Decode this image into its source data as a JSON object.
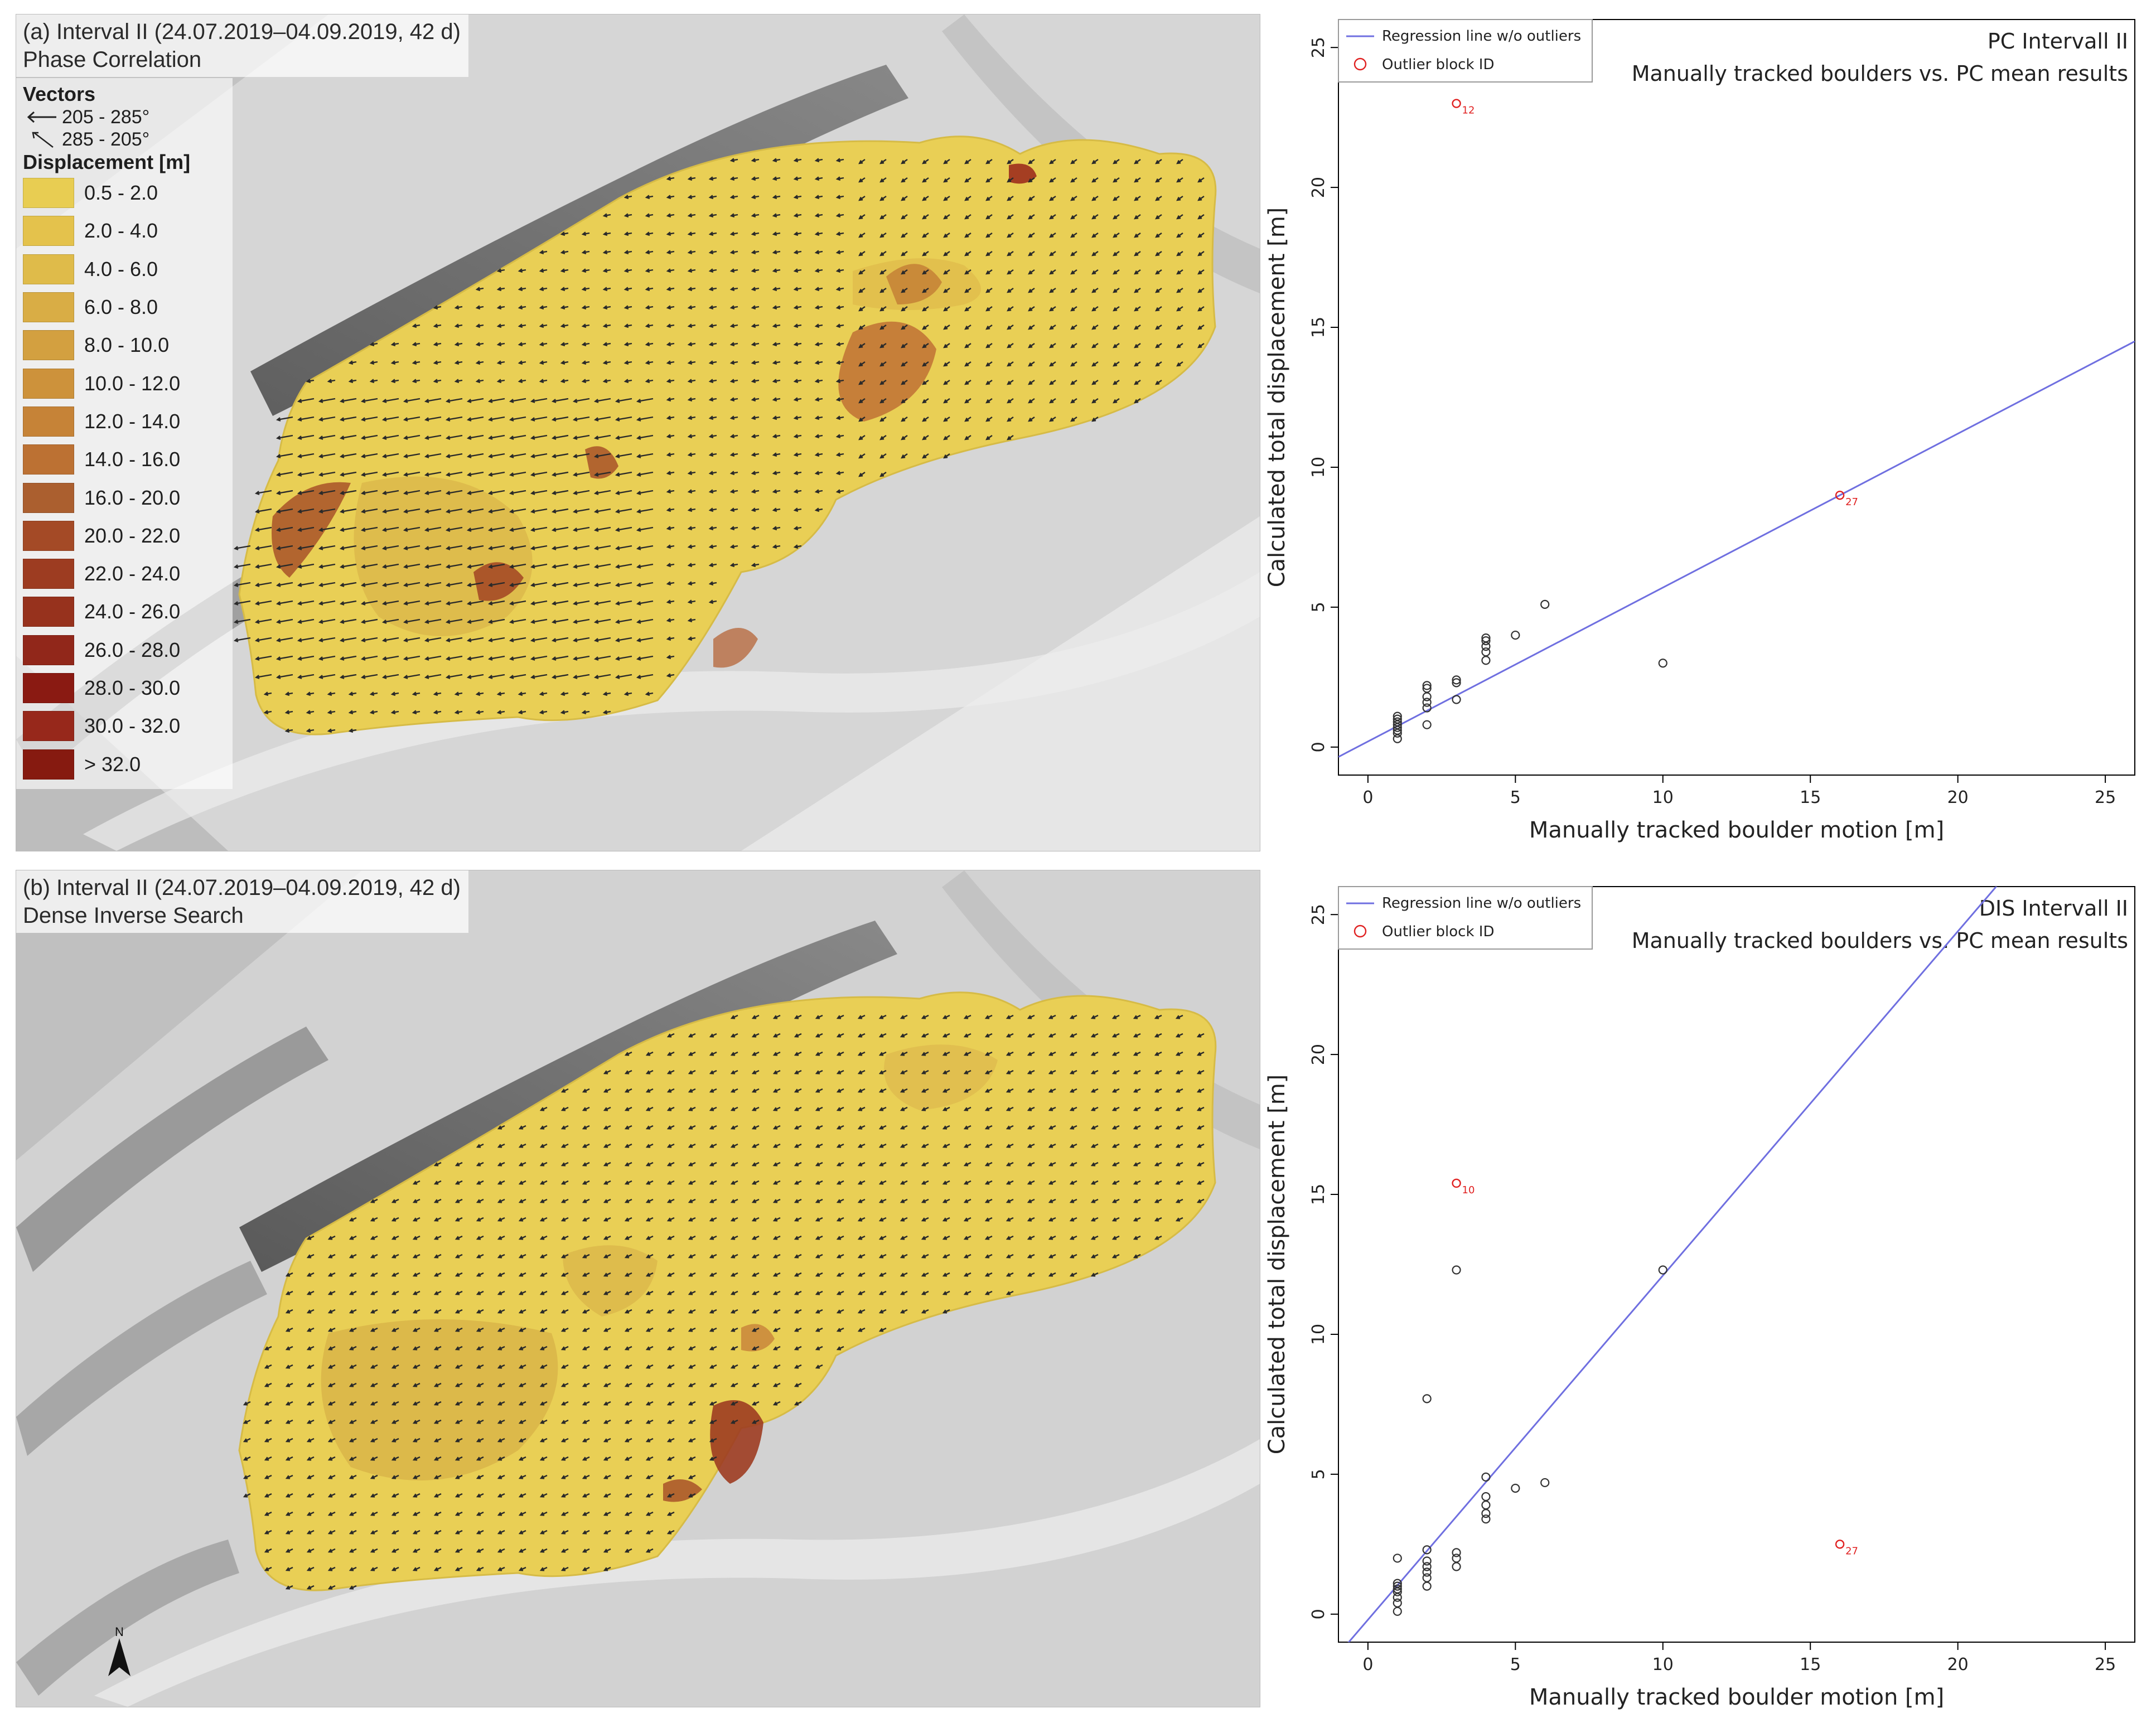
{
  "maps": [
    {
      "title": "(a) Interval II (24.07.2019–04.09.2019, 42 d)",
      "subtitle": "Phase Correlation",
      "legend": {
        "vectors_title": "Vectors",
        "vector_classes": [
          "205 - 285°",
          "285 - 205°"
        ],
        "displacement_title": "Displacement [m]",
        "classes": [
          {
            "label": "0.5 - 2.0",
            "color": "#e8cd52"
          },
          {
            "label": "2.0 - 4.0",
            "color": "#e4c24c"
          },
          {
            "label": "4.0 - 6.0",
            "color": "#dfbb4a"
          },
          {
            "label": "6.0 - 8.0",
            "color": "#d9ad45"
          },
          {
            "label": "8.0 - 10.0",
            "color": "#d3a040"
          },
          {
            "label": "10.0 - 12.0",
            "color": "#cd923b"
          },
          {
            "label": "12.0 - 14.0",
            "color": "#c68337"
          },
          {
            "label": "14.0 - 16.0",
            "color": "#bc7133"
          },
          {
            "label": "16.0 - 20.0",
            "color": "#ab5f2f"
          },
          {
            "label": "20.0 - 22.0",
            "color": "#a44a26"
          },
          {
            "label": "22.0 - 24.0",
            "color": "#9d3c21"
          },
          {
            "label": "24.0 - 26.0",
            "color": "#97321d"
          },
          {
            "label": "26.0 - 28.0",
            "color": "#91271a"
          },
          {
            "label": "28.0 - 30.0",
            "color": "#8a1a12"
          },
          {
            "label": "30.0 - 32.0",
            "color": "#97281b"
          },
          {
            "label": "> 32.0",
            "color": "#861a10"
          }
        ]
      }
    },
    {
      "title": "(b) Interval II (24.07.2019–04.09.2019, 42 d)",
      "subtitle": "Dense Inverse Search",
      "north_label": "N"
    }
  ],
  "chart_data": [
    {
      "type": "scatter",
      "title": "PC Intervall II",
      "subtitle": "Manually tracked boulders vs. PC mean results",
      "xlabel": "Manually tracked boulder motion [m]",
      "ylabel": "Calculated total displacement [m]",
      "xlim": [
        -1,
        26
      ],
      "ylim": [
        -1,
        26
      ],
      "xticks": [
        0,
        5,
        10,
        15,
        20,
        25
      ],
      "yticks": [
        0,
        5,
        10,
        15,
        20,
        25
      ],
      "legend": {
        "position": "top-left",
        "line_label": "Regression line w/o outliers",
        "outlier_label": "Outlier block ID"
      },
      "line_color": "#6f6fe0",
      "outlier_color": "#e02020",
      "regression": {
        "intercept": 0.2,
        "slope": 0.55
      },
      "points": [
        [
          1,
          0.3
        ],
        [
          1,
          0.5
        ],
        [
          1,
          0.6
        ],
        [
          1,
          0.7
        ],
        [
          1,
          0.8
        ],
        [
          1,
          0.9
        ],
        [
          1,
          1.0
        ],
        [
          1,
          1.1
        ],
        [
          2,
          0.8
        ],
        [
          2,
          1.4
        ],
        [
          2,
          1.6
        ],
        [
          2,
          1.8
        ],
        [
          2,
          2.1
        ],
        [
          2,
          2.2
        ],
        [
          3,
          1.7
        ],
        [
          3,
          2.3
        ],
        [
          3,
          2.4
        ],
        [
          4,
          3.1
        ],
        [
          4,
          3.4
        ],
        [
          4,
          3.6
        ],
        [
          4,
          3.8
        ],
        [
          4,
          3.9
        ],
        [
          5,
          4.0
        ],
        [
          6,
          5.1
        ],
        [
          10,
          3.0
        ]
      ],
      "outliers": [
        {
          "x": 3,
          "y": 23,
          "id": "12"
        },
        {
          "x": 16,
          "y": 9,
          "id": "27"
        }
      ]
    },
    {
      "type": "scatter",
      "title": "DIS Intervall II",
      "subtitle": "Manually tracked boulders vs. PC mean results",
      "xlabel": "Manually tracked boulder motion [m]",
      "ylabel": "Calculated total displacement [m]",
      "xlim": [
        -1,
        26
      ],
      "ylim": [
        -1,
        26
      ],
      "xticks": [
        0,
        5,
        10,
        15,
        20,
        25
      ],
      "yticks": [
        0,
        5,
        10,
        15,
        20,
        25
      ],
      "legend": {
        "position": "top-left",
        "line_label": "Regression line w/o outliers",
        "outlier_label": "Outlier block ID"
      },
      "line_color": "#6f6fe0",
      "outlier_color": "#e02020",
      "regression": {
        "intercept": -0.2,
        "slope": 1.23
      },
      "points": [
        [
          1,
          0.1
        ],
        [
          1,
          0.4
        ],
        [
          1,
          0.6
        ],
        [
          1,
          0.8
        ],
        [
          1,
          0.9
        ],
        [
          1,
          1.0
        ],
        [
          1,
          1.1
        ],
        [
          1,
          2.0
        ],
        [
          2,
          1.0
        ],
        [
          2,
          1.3
        ],
        [
          2,
          1.5
        ],
        [
          2,
          1.7
        ],
        [
          2,
          1.9
        ],
        [
          2,
          2.3
        ],
        [
          2,
          7.7
        ],
        [
          3,
          1.7
        ],
        [
          3,
          2.0
        ],
        [
          3,
          2.2
        ],
        [
          3,
          12.3
        ],
        [
          4,
          3.4
        ],
        [
          4,
          3.6
        ],
        [
          4,
          3.9
        ],
        [
          4,
          4.2
        ],
        [
          4,
          4.9
        ],
        [
          5,
          4.5
        ],
        [
          6,
          4.7
        ],
        [
          10,
          12.3
        ]
      ],
      "outliers": [
        {
          "x": 3,
          "y": 15.4,
          "id": "10"
        },
        {
          "x": 16,
          "y": 2.5,
          "id": "27"
        }
      ]
    }
  ]
}
